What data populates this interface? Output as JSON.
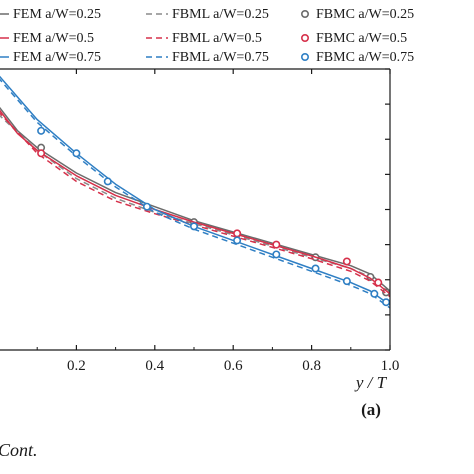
{
  "chart_data": {
    "type": "line",
    "xlabel": "y / T",
    "ylabel": "",
    "xlim": [
      0.0,
      1.0
    ],
    "ylim": [
      0.0,
      1.0
    ],
    "xticks": [
      "0.2",
      "0.4",
      "0.6",
      "0.8",
      "1.0"
    ],
    "xtick_values": [
      0.2,
      0.4,
      0.6,
      0.8,
      1.0
    ],
    "yticks_count": 8,
    "panel_label": "(a)",
    "caption": "Cont.",
    "legend_position": "top",
    "colors": {
      "gray": "#6b6b6b",
      "red": "#d6304a",
      "blue": "#2f7fc4"
    },
    "series": [
      {
        "name": "FEM a/W=0.25",
        "kind": "solid",
        "color": "#6b6b6b",
        "x": [
          0.0,
          0.05,
          0.1,
          0.2,
          0.3,
          0.4,
          0.5,
          0.6,
          0.7,
          0.8,
          0.9,
          0.95,
          1.0
        ],
        "y": [
          0.87,
          0.78,
          0.72,
          0.63,
          0.56,
          0.51,
          0.46,
          0.42,
          0.38,
          0.34,
          0.3,
          0.27,
          0.21
        ]
      },
      {
        "name": "FBML a/W=0.25",
        "kind": "dashed",
        "color": "#8a8a8a",
        "x": [
          0.0,
          0.1,
          0.2,
          0.3,
          0.4,
          0.5,
          0.6,
          0.7,
          0.8,
          0.9,
          0.95,
          1.0
        ],
        "y": [
          0.84,
          0.71,
          0.61,
          0.54,
          0.49,
          0.45,
          0.41,
          0.37,
          0.33,
          0.29,
          0.26,
          0.2
        ]
      },
      {
        "name": "FBMC a/W=0.25",
        "kind": "marker",
        "color": "#6b6b6b",
        "x": [
          0.11,
          0.5,
          0.81,
          0.95,
          0.99
        ],
        "y": [
          0.72,
          0.455,
          0.33,
          0.26,
          0.205
        ]
      },
      {
        "name": "FEM a/W=0.5",
        "kind": "solid",
        "color": "#d6304a",
        "x": [
          0.0,
          0.05,
          0.1,
          0.2,
          0.3,
          0.4,
          0.5,
          0.6,
          0.7,
          0.8,
          0.9,
          0.95,
          1.0
        ],
        "y": [
          0.86,
          0.77,
          0.71,
          0.62,
          0.55,
          0.5,
          0.455,
          0.415,
          0.375,
          0.335,
          0.29,
          0.255,
          0.2
        ]
      },
      {
        "name": "FBML a/W=0.5",
        "kind": "dashed",
        "color": "#d6304a",
        "x": [
          0.0,
          0.1,
          0.2,
          0.3,
          0.4,
          0.5,
          0.6,
          0.7,
          0.8,
          0.9,
          0.95,
          1.0
        ],
        "y": [
          0.85,
          0.7,
          0.6,
          0.53,
          0.485,
          0.445,
          0.405,
          0.365,
          0.325,
          0.28,
          0.245,
          0.19
        ]
      },
      {
        "name": "FBMC a/W=0.5",
        "kind": "marker",
        "color": "#d6304a",
        "x": [
          0.11,
          0.61,
          0.71,
          0.89,
          0.97
        ],
        "y": [
          0.7,
          0.415,
          0.375,
          0.315,
          0.24
        ]
      },
      {
        "name": "FEM a/W=0.75",
        "kind": "solid",
        "color": "#2f7fc4",
        "x": [
          0.0,
          0.05,
          0.1,
          0.15,
          0.2,
          0.25,
          0.3,
          0.35,
          0.4,
          0.5,
          0.6,
          0.7,
          0.8,
          0.9,
          0.95,
          1.0
        ],
        "y": [
          0.98,
          0.9,
          0.82,
          0.76,
          0.7,
          0.645,
          0.59,
          0.545,
          0.5,
          0.44,
          0.39,
          0.34,
          0.29,
          0.24,
          0.21,
          0.16
        ]
      },
      {
        "name": "FBML a/W=0.75",
        "kind": "dashed",
        "color": "#2f7fc4",
        "x": [
          0.0,
          0.1,
          0.2,
          0.3,
          0.4,
          0.5,
          0.6,
          0.7,
          0.8,
          0.9,
          0.95,
          1.0
        ],
        "y": [
          0.97,
          0.81,
          0.69,
          0.58,
          0.49,
          0.43,
          0.38,
          0.33,
          0.28,
          0.23,
          0.2,
          0.15
        ]
      },
      {
        "name": "FBMC a/W=0.75",
        "kind": "marker",
        "color": "#2f7fc4",
        "x": [
          0.11,
          0.2,
          0.28,
          0.38,
          0.5,
          0.61,
          0.71,
          0.81,
          0.89,
          0.96,
          0.99
        ],
        "y": [
          0.78,
          0.7,
          0.6,
          0.51,
          0.44,
          0.39,
          0.34,
          0.29,
          0.245,
          0.2,
          0.17
        ]
      }
    ]
  }
}
